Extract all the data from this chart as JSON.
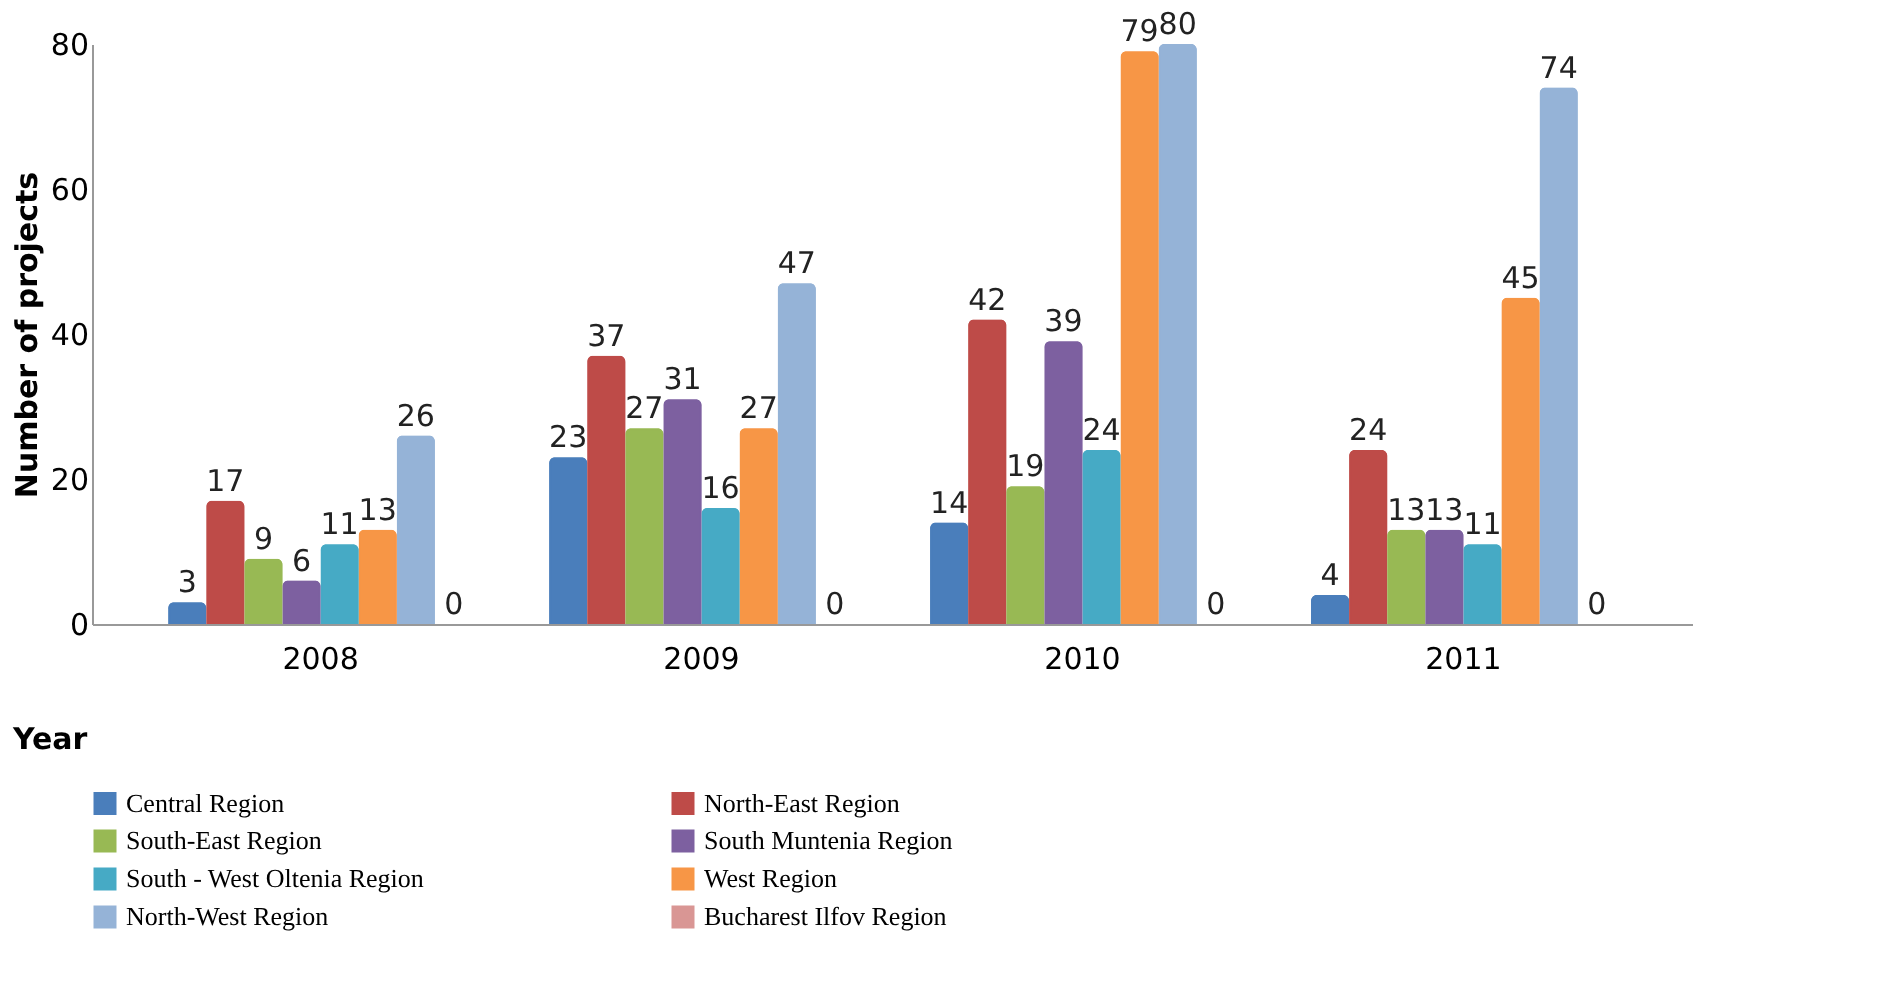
{
  "chart_data": {
    "type": "bar",
    "xlabel": "Year",
    "ylabel": "Number of projects",
    "categories": [
      "2008",
      "2009",
      "2010",
      "2011"
    ],
    "series": [
      {
        "name": "Central Region",
        "color": "#4a7ebb",
        "values": [
          3,
          23,
          14,
          4
        ]
      },
      {
        "name": "North-East Region",
        "color": "#be4b48",
        "values": [
          17,
          37,
          42,
          24
        ]
      },
      {
        "name": "South-East Region",
        "color": "#98b954",
        "values": [
          9,
          27,
          19,
          13
        ]
      },
      {
        "name": "South Muntenia Region",
        "color": "#7d60a0",
        "values": [
          6,
          31,
          39,
          13
        ]
      },
      {
        "name": "South - West Oltenia Region",
        "color": "#46aac5",
        "values": [
          11,
          16,
          24,
          11
        ]
      },
      {
        "name": "West Region",
        "color": "#f79646",
        "values": [
          13,
          27,
          79,
          45
        ]
      },
      {
        "name": "North-West Region",
        "color": "#95b3d7",
        "values": [
          26,
          47,
          80,
          74
        ]
      },
      {
        "name": "Bucharest Ilfov Region",
        "color": "#d99694",
        "values": [
          0,
          0,
          0,
          0
        ]
      }
    ],
    "ylim": [
      0,
      80
    ],
    "yticks": [
      0,
      20,
      40,
      60,
      80
    ],
    "grid": false,
    "legend": "bottom",
    "data_labels": true
  }
}
